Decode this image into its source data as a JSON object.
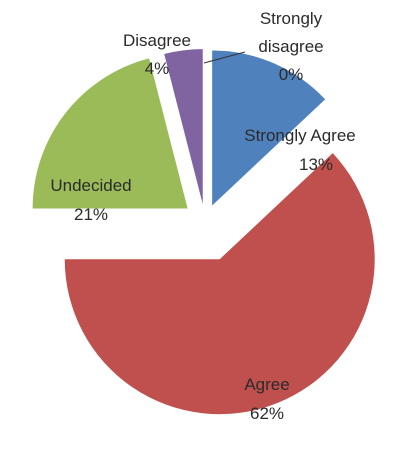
{
  "chart_data": {
    "type": "pie",
    "exploded": true,
    "legend": "none",
    "slices": [
      {
        "label": "Strongly Agree",
        "value": 13,
        "pct_label": "13%",
        "color": "#4f81bd"
      },
      {
        "label": "Agree",
        "value": 62,
        "pct_label": "62%",
        "color": "#c0504d"
      },
      {
        "label": "Undecided",
        "value": 21,
        "pct_label": "21%",
        "color": "#9bbb59"
      },
      {
        "label": "Disagree",
        "value": 4,
        "pct_label": "4%",
        "color": "#8064a2"
      },
      {
        "label": "Strongly disagree",
        "label_lines": [
          "Strongly",
          "disagree"
        ],
        "value": 0,
        "pct_label": "0%",
        "color": "#4bacc6"
      }
    ]
  }
}
